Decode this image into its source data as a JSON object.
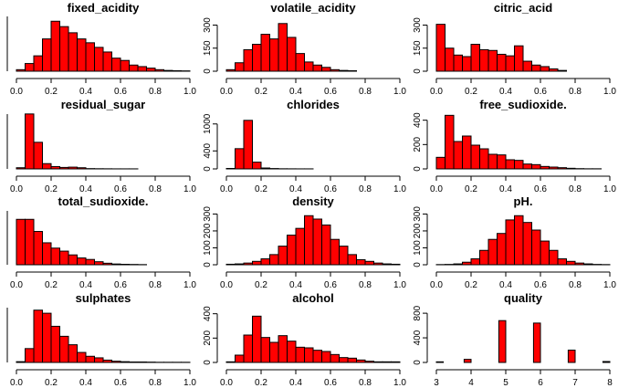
{
  "chart_data": [
    {
      "type": "bar",
      "title": "fixed_acidity",
      "bin_width": 0.05,
      "xlim": [
        0,
        1
      ],
      "ylim": [
        0,
        380
      ],
      "x_ticks": [
        "0.0",
        "0.2",
        "0.4",
        "0.6",
        "0.8",
        "1.0"
      ],
      "y_ticks": [],
      "bin_starts": [
        0.0,
        0.05,
        0.1,
        0.15,
        0.2,
        0.25,
        0.3,
        0.35,
        0.4,
        0.45,
        0.5,
        0.55,
        0.6,
        0.65,
        0.7,
        0.75,
        0.8,
        0.85,
        0.9,
        0.95
      ],
      "values": [
        10,
        50,
        100,
        210,
        325,
        290,
        250,
        210,
        185,
        155,
        125,
        85,
        70,
        40,
        30,
        20,
        10,
        5,
        3,
        2
      ]
    },
    {
      "type": "bar",
      "title": "volatile_acidity",
      "bin_width": 0.05,
      "xlim": [
        0,
        1
      ],
      "ylim": [
        0,
        380
      ],
      "x_ticks": [
        "0.0",
        "0.2",
        "0.4",
        "0.6",
        "0.8",
        "1.0"
      ],
      "y_ticks": [
        "0",
        "150",
        "300"
      ],
      "bin_starts": [
        0.0,
        0.05,
        0.1,
        0.15,
        0.2,
        0.25,
        0.3,
        0.35,
        0.4,
        0.45,
        0.5,
        0.55,
        0.6,
        0.65,
        0.7,
        0.75,
        0.8,
        0.85,
        0.9,
        0.95
      ],
      "values": [
        10,
        55,
        140,
        175,
        240,
        210,
        310,
        220,
        115,
        60,
        40,
        25,
        10,
        5,
        3,
        0,
        0,
        0,
        0,
        0
      ]
    },
    {
      "type": "bar",
      "title": "citric_acid",
      "bin_width": 0.05,
      "xlim": [
        0,
        1
      ],
      "ylim": [
        0,
        380
      ],
      "x_ticks": [
        "0.0",
        "0.2",
        "0.4",
        "0.6",
        "0.8",
        "1.0"
      ],
      "y_ticks": [
        "0",
        "150",
        "300"
      ],
      "bin_starts": [
        0.0,
        0.05,
        0.1,
        0.15,
        0.2,
        0.25,
        0.3,
        0.35,
        0.4,
        0.45,
        0.5,
        0.55,
        0.6,
        0.65,
        0.7,
        0.75,
        0.8,
        0.85,
        0.9,
        0.95
      ],
      "values": [
        305,
        150,
        105,
        95,
        175,
        140,
        135,
        110,
        100,
        165,
        65,
        40,
        30,
        15,
        5,
        0,
        0,
        0,
        0,
        0
      ]
    },
    {
      "type": "bar",
      "title": "residual_sugar",
      "bin_width": 0.05,
      "xlim": [
        0,
        1
      ],
      "ylim": [
        0,
        1000
      ],
      "x_ticks": [
        "0.0",
        "0.2",
        "0.4",
        "0.6",
        "0.8",
        "1.0"
      ],
      "y_ticks": [],
      "bin_starts": [
        0.0,
        0.05,
        0.1,
        0.15,
        0.2,
        0.25,
        0.3,
        0.35,
        0.4,
        0.45,
        0.5,
        0.55,
        0.6,
        0.65,
        0.7,
        0.75,
        0.8,
        0.85,
        0.9,
        0.95
      ],
      "values": [
        20,
        940,
        455,
        90,
        40,
        25,
        30,
        20,
        5,
        3,
        2,
        1,
        1,
        1,
        0,
        0,
        0,
        0,
        0,
        0
      ]
    },
    {
      "type": "bar",
      "title": "chlorides",
      "bin_width": 0.05,
      "xlim": [
        0,
        1
      ],
      "ylim": [
        0,
        1300
      ],
      "x_ticks": [
        "0.0",
        "0.2",
        "0.4",
        "0.6",
        "0.8",
        "1.0"
      ],
      "y_ticks": [
        "0",
        "400",
        "1000"
      ],
      "bin_starts": [
        0.0,
        0.05,
        0.1,
        0.15,
        0.2,
        0.25,
        0.3,
        0.35,
        0.4,
        0.45,
        0.5,
        0.55,
        0.6,
        0.65,
        0.7,
        0.75,
        0.8,
        0.85,
        0.9,
        0.95
      ],
      "values": [
        10,
        450,
        1080,
        150,
        20,
        8,
        3,
        2,
        1,
        1,
        0,
        0,
        0,
        0,
        0,
        0,
        0,
        0,
        0,
        0
      ]
    },
    {
      "type": "bar",
      "title": "free_sudioxide.",
      "bin_width": 0.05,
      "xlim": [
        0,
        1
      ],
      "ylim": [
        0,
        480
      ],
      "x_ticks": [
        "0.0",
        "0.2",
        "0.4",
        "0.6",
        "0.8",
        "1.0"
      ],
      "y_ticks": [
        "0",
        "200",
        "400"
      ],
      "bin_starts": [
        0.0,
        0.05,
        0.1,
        0.15,
        0.2,
        0.25,
        0.3,
        0.35,
        0.4,
        0.45,
        0.5,
        0.55,
        0.6,
        0.65,
        0.7,
        0.75,
        0.8,
        0.85,
        0.9,
        0.95
      ],
      "values": [
        95,
        440,
        225,
        270,
        195,
        165,
        120,
        115,
        75,
        70,
        40,
        35,
        20,
        15,
        10,
        5,
        2,
        1,
        1,
        0
      ]
    },
    {
      "type": "bar",
      "title": "total_sudioxide.",
      "bin_width": 0.05,
      "xlim": [
        0,
        1
      ],
      "ylim": [
        0,
        380
      ],
      "x_ticks": [
        "0.0",
        "0.2",
        "0.4",
        "0.6",
        "0.8",
        "1.0"
      ],
      "y_ticks": [],
      "bin_starts": [
        0.0,
        0.05,
        0.1,
        0.15,
        0.2,
        0.25,
        0.3,
        0.35,
        0.4,
        0.45,
        0.5,
        0.55,
        0.6,
        0.65,
        0.7,
        0.75,
        0.8,
        0.85,
        0.9,
        0.95
      ],
      "values": [
        300,
        300,
        220,
        145,
        110,
        90,
        65,
        45,
        35,
        20,
        10,
        5,
        3,
        2,
        1,
        0,
        0,
        0,
        0,
        0
      ]
    },
    {
      "type": "bar",
      "title": "density",
      "bin_width": 0.05,
      "xlim": [
        0,
        1
      ],
      "ylim": [
        0,
        340
      ],
      "x_ticks": [
        "0.0",
        "0.2",
        "0.4",
        "0.6",
        "0.8",
        "1.0"
      ],
      "y_ticks": [
        "0",
        "100",
        "200",
        "300"
      ],
      "bin_starts": [
        0.0,
        0.05,
        0.1,
        0.15,
        0.2,
        0.25,
        0.3,
        0.35,
        0.4,
        0.45,
        0.5,
        0.55,
        0.6,
        0.65,
        0.7,
        0.75,
        0.8,
        0.85,
        0.9,
        0.95
      ],
      "values": [
        3,
        5,
        10,
        20,
        35,
        60,
        110,
        175,
        215,
        290,
        270,
        235,
        150,
        110,
        60,
        30,
        20,
        10,
        5,
        3
      ]
    },
    {
      "type": "bar",
      "title": "pH.",
      "bin_width": 0.05,
      "xlim": [
        0,
        1
      ],
      "ylim": [
        0,
        340
      ],
      "x_ticks": [
        "0.0",
        "0.2",
        "0.4",
        "0.6",
        "0.8",
        "1.0"
      ],
      "y_ticks": [
        "0",
        "100",
        "200",
        "300"
      ],
      "bin_starts": [
        0.0,
        0.05,
        0.1,
        0.15,
        0.2,
        0.25,
        0.3,
        0.35,
        0.4,
        0.45,
        0.5,
        0.55,
        0.6,
        0.65,
        0.7,
        0.75,
        0.8,
        0.85,
        0.9,
        0.95
      ],
      "values": [
        1,
        2,
        5,
        15,
        35,
        85,
        150,
        185,
        265,
        290,
        250,
        205,
        140,
        85,
        35,
        20,
        10,
        5,
        2,
        1
      ]
    },
    {
      "type": "bar",
      "title": "sulphates",
      "bin_width": 0.05,
      "xlim": [
        0,
        1
      ],
      "ylim": [
        0,
        380
      ],
      "x_ticks": [
        "0.0",
        "0.2",
        "0.4",
        "0.6",
        "0.8",
        "1.0"
      ],
      "y_ticks": [],
      "bin_starts": [
        0.0,
        0.05,
        0.1,
        0.15,
        0.2,
        0.25,
        0.3,
        0.35,
        0.4,
        0.45,
        0.5,
        0.55,
        0.6,
        0.65,
        0.7,
        0.75,
        0.8,
        0.85,
        0.9,
        0.95
      ],
      "values": [
        5,
        90,
        340,
        320,
        235,
        170,
        115,
        65,
        40,
        30,
        15,
        8,
        5,
        3,
        3,
        2,
        1,
        1,
        1,
        1
      ]
    },
    {
      "type": "bar",
      "title": "alcohol",
      "bin_width": 0.05,
      "xlim": [
        0,
        1
      ],
      "ylim": [
        0,
        480
      ],
      "x_ticks": [
        "0.0",
        "0.2",
        "0.4",
        "0.6",
        "0.8",
        "1.0"
      ],
      "y_ticks": [
        "0",
        "200",
        "400"
      ],
      "bin_starts": [
        0.0,
        0.05,
        0.1,
        0.15,
        0.2,
        0.25,
        0.3,
        0.35,
        0.4,
        0.45,
        0.5,
        0.55,
        0.6,
        0.65,
        0.7,
        0.75,
        0.8,
        0.85,
        0.9,
        0.95
      ],
      "values": [
        5,
        60,
        225,
        380,
        205,
        165,
        220,
        175,
        125,
        120,
        100,
        90,
        65,
        40,
        35,
        20,
        10,
        5,
        5,
        5
      ]
    },
    {
      "type": "bar",
      "title": "quality",
      "bin_width": 0.2,
      "xlim": [
        3,
        8
      ],
      "ylim": [
        0,
        950
      ],
      "x_ticks": [
        "3",
        "4",
        "5",
        "6",
        "7",
        "8"
      ],
      "y_ticks": [
        "0",
        "400",
        "800"
      ],
      "bin_starts": [
        3.0,
        3.2,
        3.4,
        3.6,
        3.8,
        4.0,
        4.2,
        4.4,
        4.6,
        4.8,
        5.0,
        5.2,
        5.4,
        5.6,
        5.8,
        6.0,
        6.2,
        6.4,
        6.6,
        6.8,
        7.0,
        7.2,
        7.4,
        7.6,
        7.8
      ],
      "values": [
        10,
        0,
        0,
        0,
        50,
        0,
        0,
        0,
        0,
        680,
        0,
        0,
        0,
        0,
        640,
        0,
        0,
        0,
        0,
        200,
        0,
        0,
        0,
        0,
        15
      ]
    }
  ],
  "colors": {
    "bar_fill": "#ff0000",
    "bar_stroke": "#000000",
    "axis": "#000000",
    "background": "#ffffff"
  }
}
